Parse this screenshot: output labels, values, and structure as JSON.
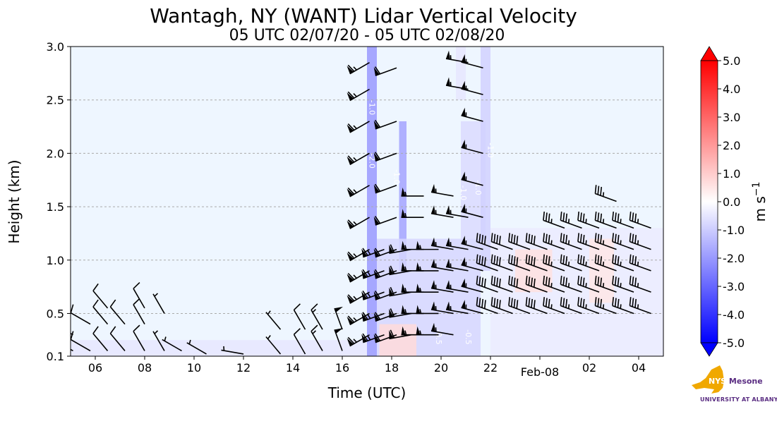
{
  "chart_data": {
    "type": "heatmap",
    "title": "Wantagh, NY (WANT) Lidar Vertical Velocity",
    "subtitle": "05 UTC 02/07/20 - 05 UTC 02/08/20",
    "xlabel": "Time (UTC)",
    "ylabel": "Height (km)",
    "xlim_hours": [
      5,
      29
    ],
    "ylim": [
      0.1,
      3.0
    ],
    "x_ticks": [
      {
        "hour": 6,
        "label": "06"
      },
      {
        "hour": 8,
        "label": "08"
      },
      {
        "hour": 10,
        "label": "10"
      },
      {
        "hour": 12,
        "label": "12"
      },
      {
        "hour": 14,
        "label": "14"
      },
      {
        "hour": 16,
        "label": "16"
      },
      {
        "hour": 18,
        "label": "18"
      },
      {
        "hour": 20,
        "label": "20"
      },
      {
        "hour": 22,
        "label": "22"
      },
      {
        "hour": 24,
        "label": "Feb-08"
      },
      {
        "hour": 26,
        "label": "02"
      },
      {
        "hour": 28,
        "label": "04"
      }
    ],
    "y_ticks": [
      {
        "value": 0.1,
        "label": "0.1"
      },
      {
        "value": 0.5,
        "label": "0.5"
      },
      {
        "value": 1.0,
        "label": "1.0"
      },
      {
        "value": 1.5,
        "label": "1.5"
      },
      {
        "value": 2.0,
        "label": "2.0"
      },
      {
        "value": 2.5,
        "label": "2.5"
      },
      {
        "value": 3.0,
        "label": "3.0"
      }
    ],
    "grid": "horizontal dashed",
    "colorbar": {
      "label": "m s",
      "label_exp": "−1",
      "range": [
        -5,
        5
      ],
      "ticks": [
        "5.0",
        "4.0",
        "3.0",
        "2.0",
        "1.0",
        "0.0",
        "-1.0",
        "-2.0",
        "-3.0",
        "-4.0",
        "-5.0"
      ],
      "tick_values": [
        5,
        4,
        3,
        2,
        1,
        0,
        -1,
        -2,
        -3,
        -4,
        -5
      ],
      "colors": {
        "min": "#0000ff",
        "mid": "#ffffff",
        "max": "#ff0000",
        "background": "#eef6ff"
      }
    },
    "velocity_regions": [
      {
        "t0": 5.0,
        "t1": 17.0,
        "h0": 0.1,
        "h1": 0.25,
        "w": -0.5
      },
      {
        "t0": 17.0,
        "t1": 17.4,
        "h0": 0.1,
        "h1": 3.0,
        "w": -2.0
      },
      {
        "t0": 18.3,
        "t1": 18.6,
        "h0": 0.9,
        "h1": 2.3,
        "w": -1.8
      },
      {
        "t0": 17.4,
        "t1": 21.6,
        "h0": 0.1,
        "h1": 1.2,
        "w": -0.8
      },
      {
        "t0": 20.8,
        "t1": 21.8,
        "h0": 1.2,
        "h1": 2.3,
        "w": -0.7
      },
      {
        "t0": 20.6,
        "t1": 21.0,
        "h0": 2.5,
        "h1": 3.0,
        "w": -0.5
      },
      {
        "t0": 21.6,
        "t1": 22.0,
        "h0": 0.9,
        "h1": 3.0,
        "w": -0.9
      },
      {
        "t0": 22.0,
        "t1": 29.0,
        "h0": 0.1,
        "h1": 1.3,
        "w": -0.4
      },
      {
        "t0": 23.0,
        "t1": 24.5,
        "h0": 0.7,
        "h1": 1.1,
        "w": 0.6
      },
      {
        "t0": 26.0,
        "t1": 27.0,
        "h0": 0.6,
        "h1": 1.2,
        "w": 0.5
      },
      {
        "t0": 17.5,
        "t1": 19.0,
        "h0": 0.1,
        "h1": 0.4,
        "w": 0.7
      }
    ],
    "contour_labels": [
      {
        "t": 17.1,
        "h": 2.5,
        "text": "-1.0"
      },
      {
        "t": 17.1,
        "h": 2.0,
        "text": "-2.0"
      },
      {
        "t": 18.1,
        "h": 1.85,
        "text": "-1.0"
      },
      {
        "t": 21.4,
        "h": 1.75,
        "text": "-1.0"
      },
      {
        "t": 21.9,
        "h": 2.1,
        "text": "-1.0"
      },
      {
        "t": 20.8,
        "h": 1.7,
        "text": "-1.0"
      },
      {
        "t": 19.8,
        "h": 0.35,
        "text": "-0.5"
      },
      {
        "t": 21.0,
        "h": 0.35,
        "text": "-0.5"
      }
    ],
    "wind_barbs": [
      {
        "t": 5.1,
        "heights": [
          0.15,
          0.3
        ],
        "dir": 300,
        "speed": 10
      },
      {
        "t": 5.8,
        "heights": [
          0.15,
          0.4
        ],
        "dir": 300,
        "speed": 10
      },
      {
        "t": 6.5,
        "heights": [
          0.15,
          0.4,
          0.55
        ],
        "dir": 320,
        "speed": 10
      },
      {
        "t": 7.2,
        "heights": [
          0.15,
          0.4
        ],
        "dir": 320,
        "speed": 10
      },
      {
        "t": 8.0,
        "heights": [
          0.15,
          0.4,
          0.55
        ],
        "dir": 330,
        "speed": 10
      },
      {
        "t": 8.8,
        "heights": [
          0.15,
          0.5
        ],
        "dir": 330,
        "speed": 5
      },
      {
        "t": 9.5,
        "heights": [
          0.15
        ],
        "dir": 300,
        "speed": 5
      },
      {
        "t": 10.5,
        "heights": [
          0.12
        ],
        "dir": 300,
        "speed": 5
      },
      {
        "t": 12.0,
        "heights": [
          0.12
        ],
        "dir": 280,
        "speed": 5
      },
      {
        "t": 13.5,
        "heights": [
          0.12,
          0.35
        ],
        "dir": 320,
        "speed": 5
      },
      {
        "t": 14.5,
        "heights": [
          0.12,
          0.35
        ],
        "dir": 330,
        "speed": 10
      },
      {
        "t": 15.2,
        "heights": [
          0.15,
          0.35
        ],
        "dir": 330,
        "speed": 15
      },
      {
        "t": 16.0,
        "heights": [
          0.15,
          0.35
        ],
        "dir": 340,
        "speed": 50
      },
      {
        "t": 17.1,
        "heights": [
          0.3,
          0.5,
          0.7,
          0.9,
          1.1,
          1.4,
          1.7,
          2.0,
          2.3,
          2.6,
          2.85
        ],
        "dir": 240,
        "speed": 65
      },
      {
        "t": 17.7,
        "heights": [
          0.3,
          0.5,
          0.7,
          0.9,
          1.1
        ],
        "dir": 250,
        "speed": 65
      },
      {
        "t": 18.2,
        "heights": [
          0.3,
          0.5,
          0.7,
          0.9,
          1.1,
          1.4,
          1.7,
          2.0,
          2.3,
          2.8
        ],
        "dir": 250,
        "speed": 60
      },
      {
        "t": 18.8,
        "heights": [
          0.3,
          0.5,
          0.7,
          0.9,
          1.1
        ],
        "dir": 260,
        "speed": 60
      },
      {
        "t": 19.3,
        "heights": [
          0.3,
          0.5,
          0.7,
          0.9,
          1.1,
          1.4,
          1.6
        ],
        "dir": 270,
        "speed": 55
      },
      {
        "t": 19.9,
        "heights": [
          0.3,
          0.5,
          0.7,
          0.9,
          1.1
        ],
        "dir": 270,
        "speed": 55
      },
      {
        "t": 20.5,
        "heights": [
          0.3,
          0.5,
          0.7,
          0.9,
          1.1,
          1.4,
          1.6
        ],
        "dir": 280,
        "speed": 55
      },
      {
        "t": 21.1,
        "heights": [
          0.5,
          0.7,
          0.9,
          1.1,
          1.4,
          2.6,
          2.85
        ],
        "dir": 280,
        "speed": 55
      },
      {
        "t": 21.7,
        "heights": [
          0.5,
          0.7,
          0.9,
          1.1,
          1.4,
          1.7,
          2.0,
          2.3,
          2.55,
          2.8
        ],
        "dir": 285,
        "speed": 55
      },
      {
        "t": 22.3,
        "heights": [
          0.5,
          0.7,
          0.9,
          1.1
        ],
        "dir": 290,
        "speed": 40
      },
      {
        "t": 22.9,
        "heights": [
          0.5,
          0.7,
          0.9,
          1.1
        ],
        "dir": 290,
        "speed": 40
      },
      {
        "t": 23.6,
        "heights": [
          0.5,
          0.7,
          0.9,
          1.1
        ],
        "dir": 290,
        "speed": 40
      },
      {
        "t": 24.3,
        "heights": [
          0.5,
          0.7,
          0.9,
          1.1
        ],
        "dir": 290,
        "speed": 40
      },
      {
        "t": 25.0,
        "heights": [
          0.5,
          0.7,
          0.9,
          1.1,
          1.3
        ],
        "dir": 290,
        "speed": 35
      },
      {
        "t": 25.7,
        "heights": [
          0.5,
          0.7,
          0.9,
          1.1,
          1.3
        ],
        "dir": 290,
        "speed": 35
      },
      {
        "t": 26.4,
        "heights": [
          0.5,
          0.7,
          0.9,
          1.1,
          1.3
        ],
        "dir": 290,
        "speed": 35
      },
      {
        "t": 27.1,
        "heights": [
          0.5,
          0.7,
          0.9,
          1.1,
          1.3,
          1.55
        ],
        "dir": 290,
        "speed": 35
      },
      {
        "t": 27.8,
        "heights": [
          0.5,
          0.7,
          0.9,
          1.1,
          1.3
        ],
        "dir": 290,
        "speed": 35
      },
      {
        "t": 28.5,
        "heights": [
          0.5,
          0.7,
          0.9,
          1.1,
          1.3
        ],
        "dir": 290,
        "speed": 35
      }
    ]
  },
  "logo": {
    "text": "NYS Mesonet",
    "subtext": "UNIVERSITY AT ALBANY"
  }
}
